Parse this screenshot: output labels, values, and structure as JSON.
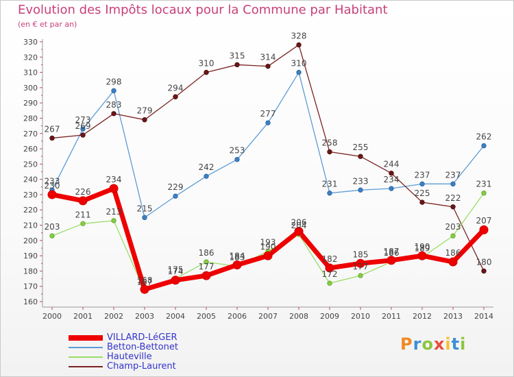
{
  "header": {
    "title": "Evolution des Impôts locaux pour la Commune par Habitant",
    "subtitle": "(en € et par an)"
  },
  "logo": {
    "text": "Proxiti",
    "colors": [
      "#f08a24",
      "#3c8fd6",
      "#8cc63f",
      "#e84c3d",
      "#f2c230",
      "#3c8fd6",
      "#8cc63f"
    ]
  },
  "chart_data": {
    "type": "line",
    "title": "Evolution des Impôts locaux pour la Commune par Habitant",
    "ylabel": "(en € et par an)",
    "x": [
      "2000",
      "2001",
      "2002",
      "2003",
      "2004",
      "2005",
      "2006",
      "2007",
      "2008",
      "2009",
      "2010",
      "2011",
      "2012",
      "2013",
      "2014"
    ],
    "ylim": [
      160,
      330
    ],
    "yticks": [
      160,
      170,
      180,
      190,
      200,
      210,
      220,
      230,
      240,
      250,
      260,
      270,
      280,
      290,
      300,
      310,
      320,
      330
    ],
    "grid": false,
    "legend_position": "bottom-left",
    "series": [
      {
        "name": "VILLARD-LéGER",
        "color": "#ee0000",
        "values": [
          230,
          226,
          234,
          168,
          174,
          177,
          184,
          190,
          206,
          182,
          185,
          187,
          190,
          186,
          207
        ]
      },
      {
        "name": "Betton-Bettonet",
        "color": "#5b9bd5",
        "values": [
          233,
          273,
          298,
          215,
          229,
          242,
          253,
          277,
          310,
          231,
          233,
          234,
          237,
          237,
          262
        ]
      },
      {
        "name": "Hauteville",
        "color": "#99dd66",
        "values": [
          203,
          211,
          213,
          167,
          175,
          186,
          183,
          193,
          204,
          172,
          177,
          186,
          189,
          203,
          231
        ]
      },
      {
        "name": "Champ-Laurent",
        "color": "#7a2222",
        "values": [
          267,
          269,
          283,
          279,
          294,
          310,
          315,
          314,
          328,
          258,
          255,
          244,
          225,
          222,
          180
        ]
      }
    ]
  }
}
